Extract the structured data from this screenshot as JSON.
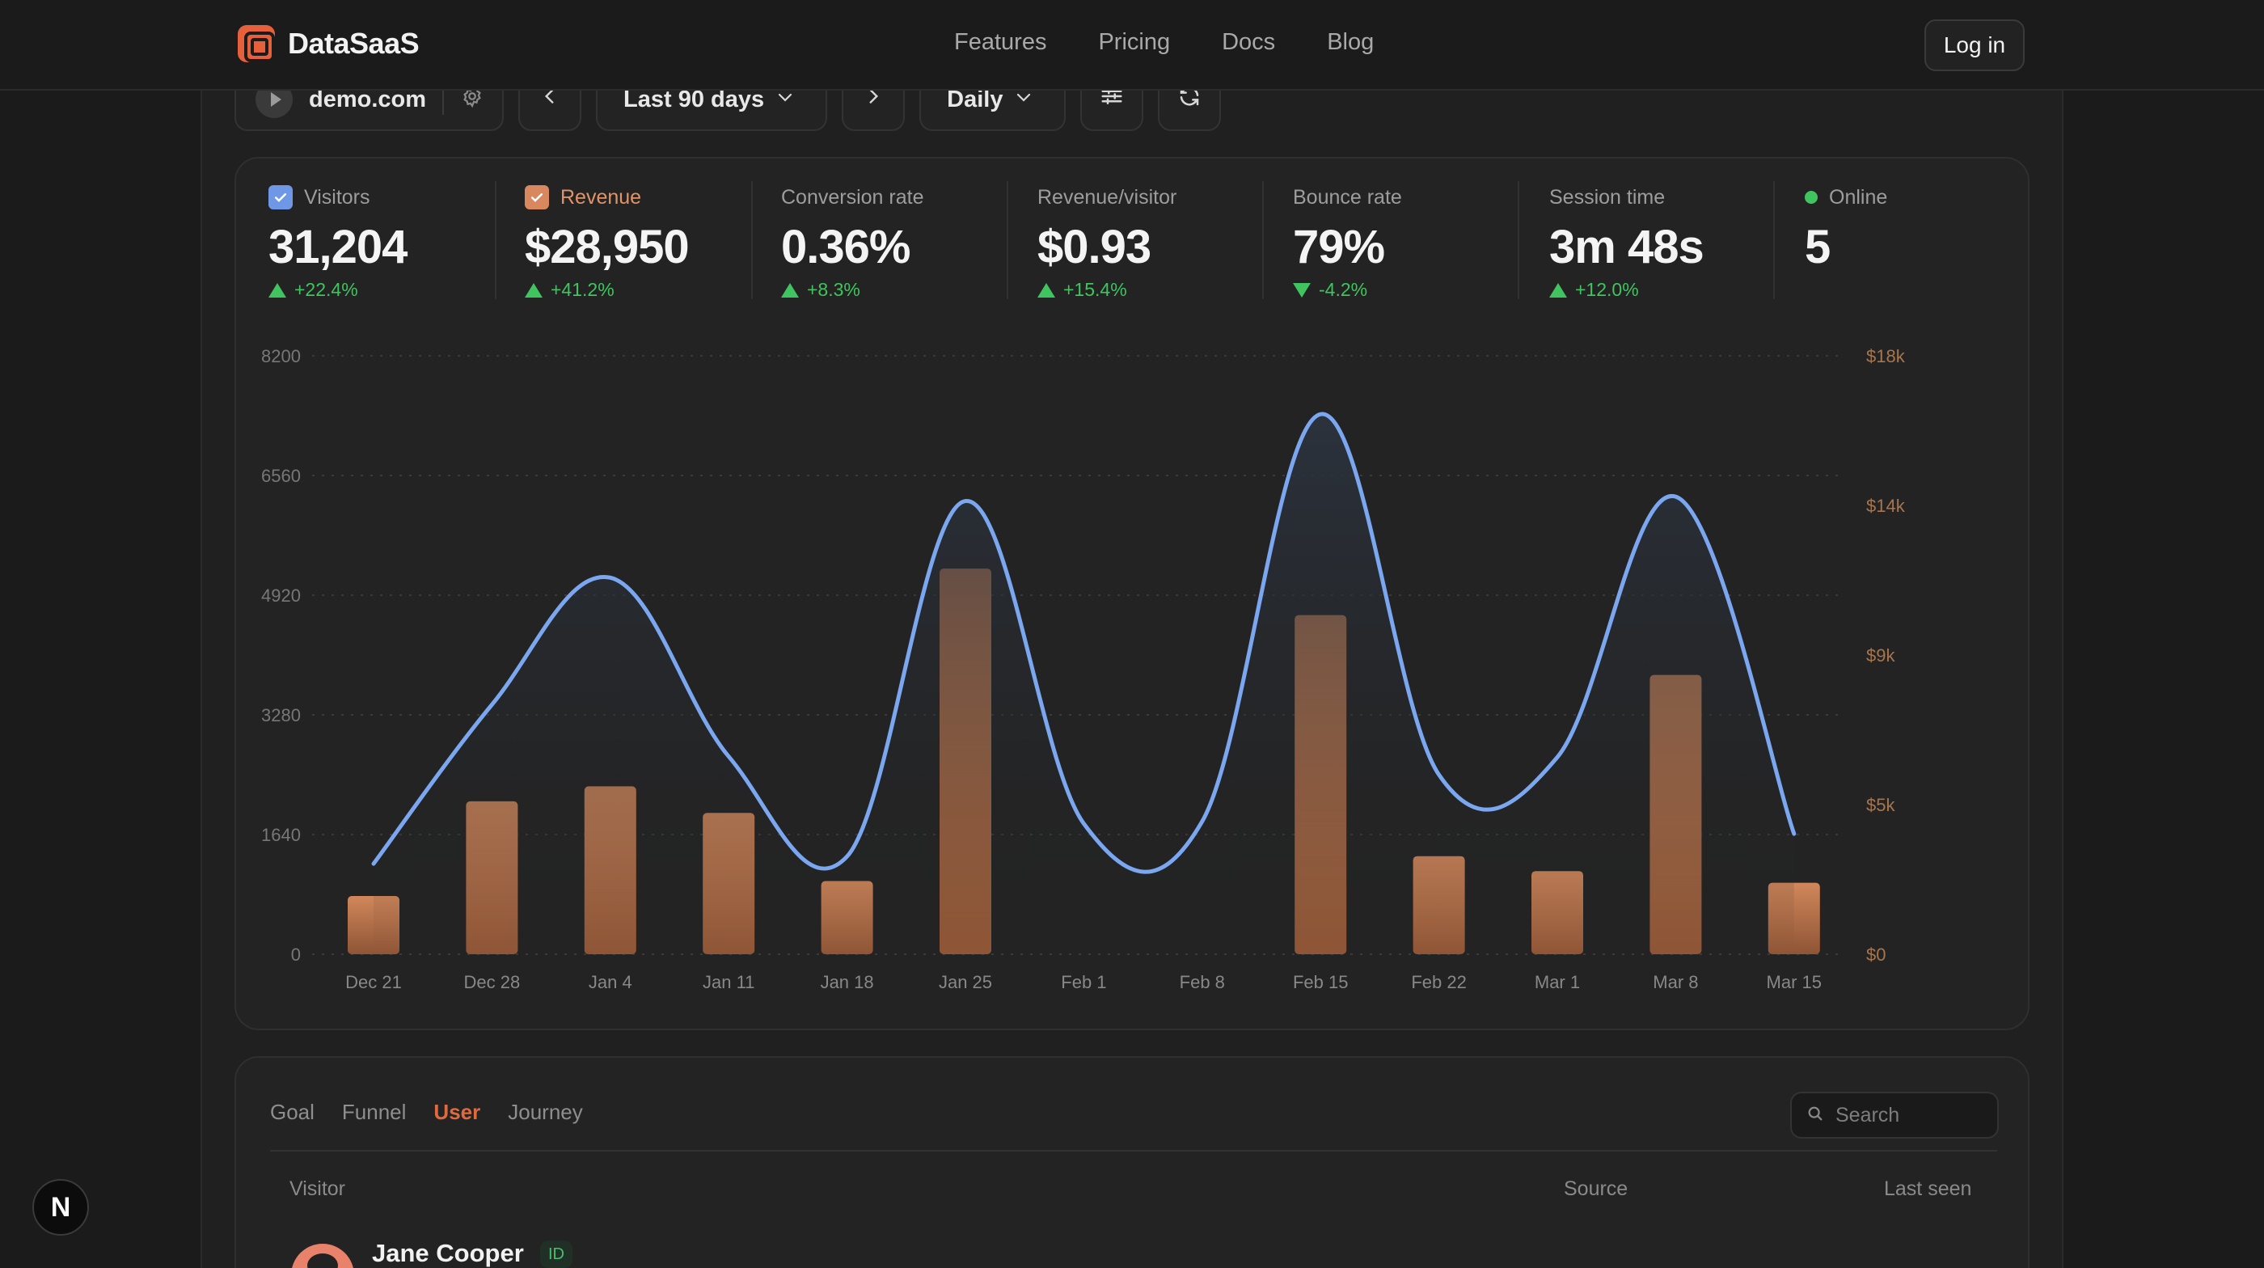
{
  "brand": {
    "name": "DataSaaS"
  },
  "nav": {
    "links": [
      "Features",
      "Pricing",
      "Docs",
      "Blog"
    ],
    "login": "Log in"
  },
  "toolbar": {
    "site": "demo.com",
    "range": "Last 90 days",
    "interval": "Daily"
  },
  "colors": {
    "accent": "#e06a40",
    "visitors": "#7aa7f0",
    "revenue": "#c97f52",
    "positive": "#3fc45f"
  },
  "metrics": [
    {
      "label": "Visitors",
      "value": "31,204",
      "delta": "+22.4%",
      "direction": "up",
      "checked": true
    },
    {
      "label": "Revenue",
      "value": "$28,950",
      "delta": "+41.2%",
      "direction": "up",
      "checked": true
    },
    {
      "label": "Conversion rate",
      "value": "0.36%",
      "delta": "+8.3%",
      "direction": "up"
    },
    {
      "label": "Revenue/visitor",
      "value": "$0.93",
      "delta": "+15.4%",
      "direction": "up"
    },
    {
      "label": "Bounce rate",
      "value": "79%",
      "delta": "-4.2%",
      "direction": "down"
    },
    {
      "label": "Session time",
      "value": "3m 48s",
      "delta": "+12.0%",
      "direction": "up"
    },
    {
      "label": "Online",
      "value": "5"
    }
  ],
  "chart_data": {
    "type": "bar",
    "categories": [
      "Dec 21",
      "Dec 28",
      "Jan 4",
      "Jan 11",
      "Jan 18",
      "Jan 25",
      "Feb 1",
      "Feb 8",
      "Feb 15",
      "Feb 22",
      "Mar 1",
      "Mar 8",
      "Mar 15"
    ],
    "series": [
      {
        "type": "bar",
        "axis": "right",
        "values": [
          1750,
          4600,
          5050,
          4250,
          2200,
          11600,
          0,
          0,
          10200,
          2950,
          2500,
          8400,
          2150
        ]
      },
      {
        "type": "line",
        "axis": "left",
        "values": [
          1240,
          3420,
          5160,
          2710,
          1340,
          6210,
          1790,
          1820,
          7400,
          2460,
          2700,
          6270,
          1650
        ]
      }
    ],
    "y_left": {
      "ticks": [
        "0",
        "1640",
        "3280",
        "4920",
        "6560",
        "8200"
      ],
      "range": [
        0,
        8200
      ]
    },
    "y_right": {
      "ticks": [
        "$0",
        "$5k",
        "$9k",
        "$14k",
        "$18k"
      ],
      "range": [
        0,
        18000
      ]
    },
    "grid": true
  },
  "table": {
    "tabs": [
      "Goal",
      "Funnel",
      "User",
      "Journey"
    ],
    "active_tab": "User",
    "search_placeholder": "Search",
    "columns": [
      "Visitor",
      "Source",
      "Last seen"
    ],
    "rows": [
      {
        "name": "Jane Cooper",
        "badge": "ID"
      }
    ]
  },
  "fab": {
    "label": "N"
  }
}
